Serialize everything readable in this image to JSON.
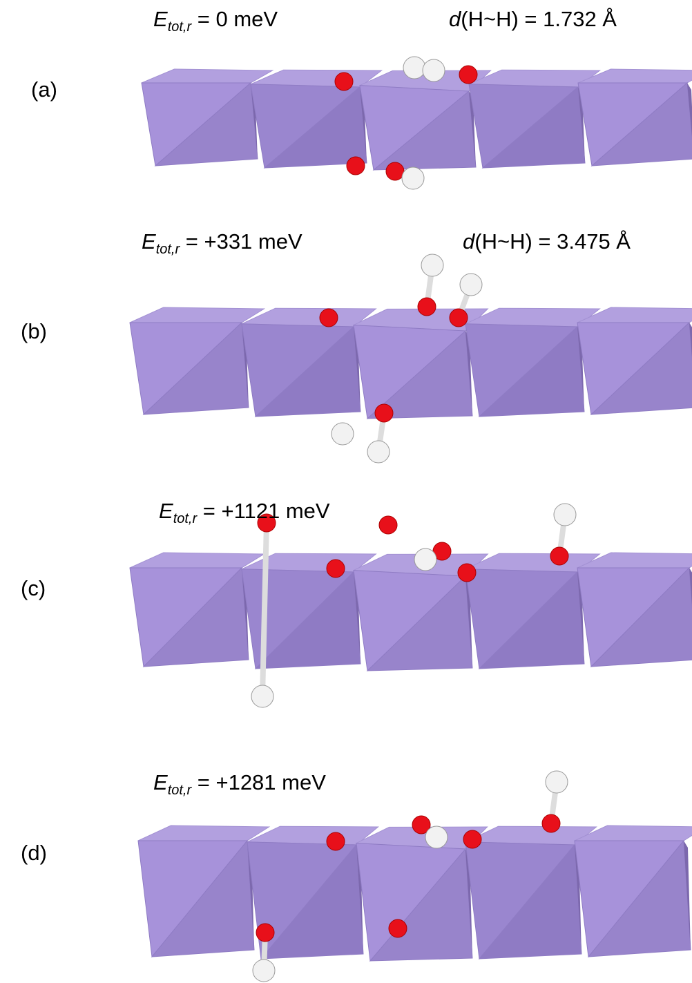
{
  "panels": [
    {
      "label": "(a)",
      "energy": {
        "symbol": "E",
        "subscript": "tot,r",
        "text": " =   0 meV"
      },
      "distance": {
        "symbol": "d",
        "text": "(H~H) = 1.732 Å"
      }
    },
    {
      "label": "(b)",
      "energy": {
        "symbol": "E",
        "subscript": "tot,r",
        "text": " =  +331 meV"
      },
      "distance": {
        "symbol": "d",
        "text": "(H~H) = 3.475 Å"
      }
    },
    {
      "label": "(c)",
      "energy": {
        "symbol": "E",
        "subscript": "tot,r",
        "text": " = +1121 meV"
      }
    },
    {
      "label": "(d)",
      "energy": {
        "symbol": "E",
        "subscript": "tot,r",
        "text": " = +1281 meV"
      }
    }
  ]
}
